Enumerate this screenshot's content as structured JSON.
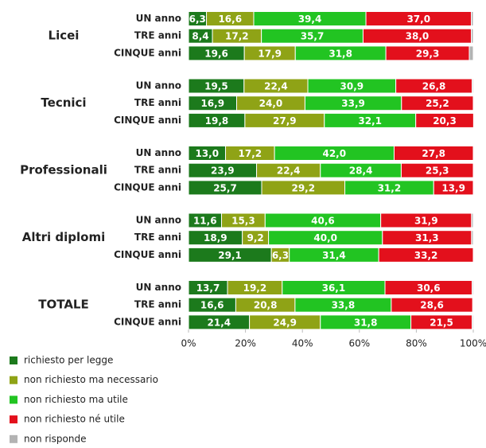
{
  "chart_data": {
    "type": "stacked-bar-horizontal",
    "groups": [
      "Licei",
      "Tecnici",
      "Professionali",
      "Altri diplomi",
      "TOTALE"
    ],
    "categories": [
      "UN anno",
      "TRE anni",
      "CINQUE anni",
      "UN anno",
      "TRE anni",
      "CINQUE anni",
      "UN anno",
      "TRE anni",
      "CINQUE anni",
      "UN anno",
      "TRE anni",
      "CINQUE anni",
      "UN anno",
      "TRE anni",
      "CINQUE anni"
    ],
    "series": [
      {
        "name": "richiesto per legge",
        "color": "#1c7a1c",
        "values": [
          6.3,
          8.4,
          19.6,
          19.5,
          16.9,
          19.8,
          13.0,
          23.9,
          25.7,
          11.6,
          18.9,
          29.1,
          13.7,
          16.6,
          21.4
        ],
        "value_labels": [
          "6,3",
          "8,4",
          "19,6",
          "19,5",
          "16,9",
          "19,8",
          "13,0",
          "23,9",
          "25,7",
          "11,6",
          "18,9",
          "29,1",
          "13,7",
          "16,6",
          "21,4"
        ]
      },
      {
        "name": "non richiesto ma necessario",
        "color": "#8fa316",
        "values": [
          16.6,
          17.2,
          17.9,
          22.4,
          24.0,
          27.9,
          17.2,
          22.4,
          29.2,
          15.3,
          9.2,
          6.3,
          19.2,
          20.8,
          24.9
        ],
        "value_labels": [
          "16,6",
          "17,2",
          "17,9",
          "22,4",
          "24,0",
          "27,9",
          "17,2",
          "22,4",
          "29,2",
          "15,3",
          "9,2",
          "6,3",
          "19,2",
          "20,8",
          "24,9"
        ]
      },
      {
        "name": "non richiesto ma utile",
        "color": "#22c422",
        "values": [
          39.4,
          35.7,
          31.8,
          30.9,
          33.9,
          32.1,
          42.0,
          28.4,
          31.2,
          40.6,
          40.0,
          31.4,
          36.1,
          33.8,
          31.8
        ],
        "value_labels": [
          "39,4",
          "35,7",
          "31,8",
          "30,9",
          "33,9",
          "32,1",
          "42,0",
          "28,4",
          "31,2",
          "40,6",
          "40,0",
          "31,4",
          "36,1",
          "33,8",
          "31,8"
        ]
      },
      {
        "name": "non richiesto né utile",
        "color": "#e3101c",
        "values": [
          37.0,
          38.0,
          29.3,
          26.8,
          25.2,
          20.3,
          27.8,
          25.3,
          13.9,
          31.9,
          31.3,
          33.2,
          30.6,
          28.6,
          21.5
        ],
        "value_labels": [
          "37,0",
          "38,0",
          "29,3",
          "26,8",
          "25,2",
          "20,3",
          "27,8",
          "25,3",
          "13,9",
          "31,9",
          "31,3",
          "33,2",
          "30,6",
          "28,6",
          "21,5"
        ]
      },
      {
        "name": "non risponde",
        "color": "#b3b3b3",
        "values": [
          0.7,
          0.7,
          1.4,
          0.4,
          0.0,
          0.0,
          0.0,
          0.0,
          0.0,
          0.6,
          0.6,
          0.0,
          0.4,
          0.2,
          0.4
        ]
      }
    ],
    "xlim": [
      0,
      100
    ],
    "xticks": [
      {
        "value": 0,
        "label": "0%"
      },
      {
        "value": 20,
        "label": "20%"
      },
      {
        "value": 40,
        "label": "40%"
      },
      {
        "value": 60,
        "label": "60%"
      },
      {
        "value": 80,
        "label": "80%"
      },
      {
        "value": 100,
        "label": "100%"
      }
    ]
  }
}
